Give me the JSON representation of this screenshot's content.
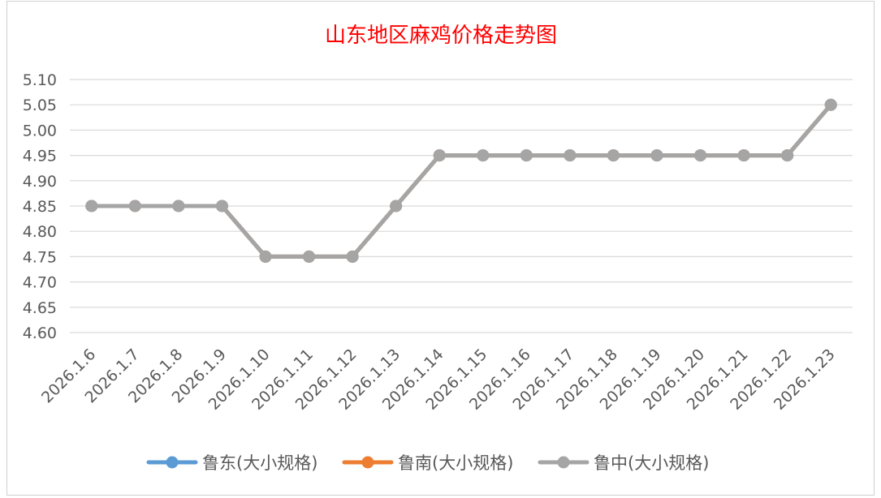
{
  "chart_data": {
    "type": "line",
    "title": "山东地区麻鸡价格走势图",
    "xlabel": "",
    "ylabel": "",
    "categories": [
      "2026.1.6",
      "2026.1.7",
      "2026.1.8",
      "2026.1.9",
      "2026.1.10",
      "2026.1.11",
      "2026.1.12",
      "2026.1.13",
      "2026.1.14",
      "2026.1.15",
      "2026.1.16",
      "2026.1.17",
      "2026.1.18",
      "2026.1.19",
      "2026.1.20",
      "2026.1.21",
      "2026.1.22",
      "2026.1.23"
    ],
    "ylim": [
      4.6,
      5.1
    ],
    "yticks": [
      "4.60",
      "4.65",
      "4.70",
      "4.75",
      "4.80",
      "4.85",
      "4.90",
      "4.95",
      "5.00",
      "5.05",
      "5.10"
    ],
    "grid": true,
    "legend_position": "bottom",
    "series": [
      {
        "name": "鲁东(大小规格)",
        "color": "#5b9bd5",
        "values": [
          4.85,
          4.85,
          4.85,
          4.85,
          4.75,
          4.75,
          4.75,
          4.85,
          4.95,
          4.95,
          4.95,
          4.95,
          4.95,
          4.95,
          4.95,
          4.95,
          4.95,
          5.05
        ]
      },
      {
        "name": "鲁南(大小规格)",
        "color": "#ed7d31",
        "values": [
          4.85,
          4.85,
          4.85,
          4.85,
          4.75,
          4.75,
          4.75,
          4.85,
          4.95,
          4.95,
          4.95,
          4.95,
          4.95,
          4.95,
          4.95,
          4.95,
          4.95,
          5.05
        ]
      },
      {
        "name": "鲁中(大小规格)",
        "color": "#a5a5a5",
        "values": [
          4.85,
          4.85,
          4.85,
          4.85,
          4.75,
          4.75,
          4.75,
          4.85,
          4.95,
          4.95,
          4.95,
          4.95,
          4.95,
          4.95,
          4.95,
          4.95,
          4.95,
          5.05
        ]
      }
    ]
  }
}
